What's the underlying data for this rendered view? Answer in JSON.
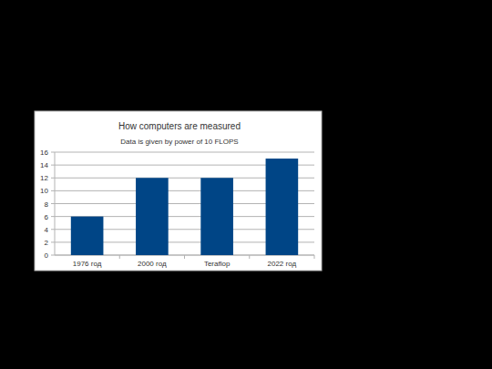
{
  "chart_data": {
    "type": "bar",
    "title": "How computers are measured",
    "subtitle": "Data is given by power of 10 FLOPS",
    "categories": [
      "1976 год",
      "2000 год",
      "Teraflop",
      "2022 год"
    ],
    "values": [
      6,
      12,
      12,
      15
    ],
    "color": "#004586",
    "ylim": [
      0,
      16
    ],
    "yticks": [
      0,
      2,
      4,
      6,
      8,
      10,
      12,
      14,
      16
    ],
    "grid": true
  }
}
